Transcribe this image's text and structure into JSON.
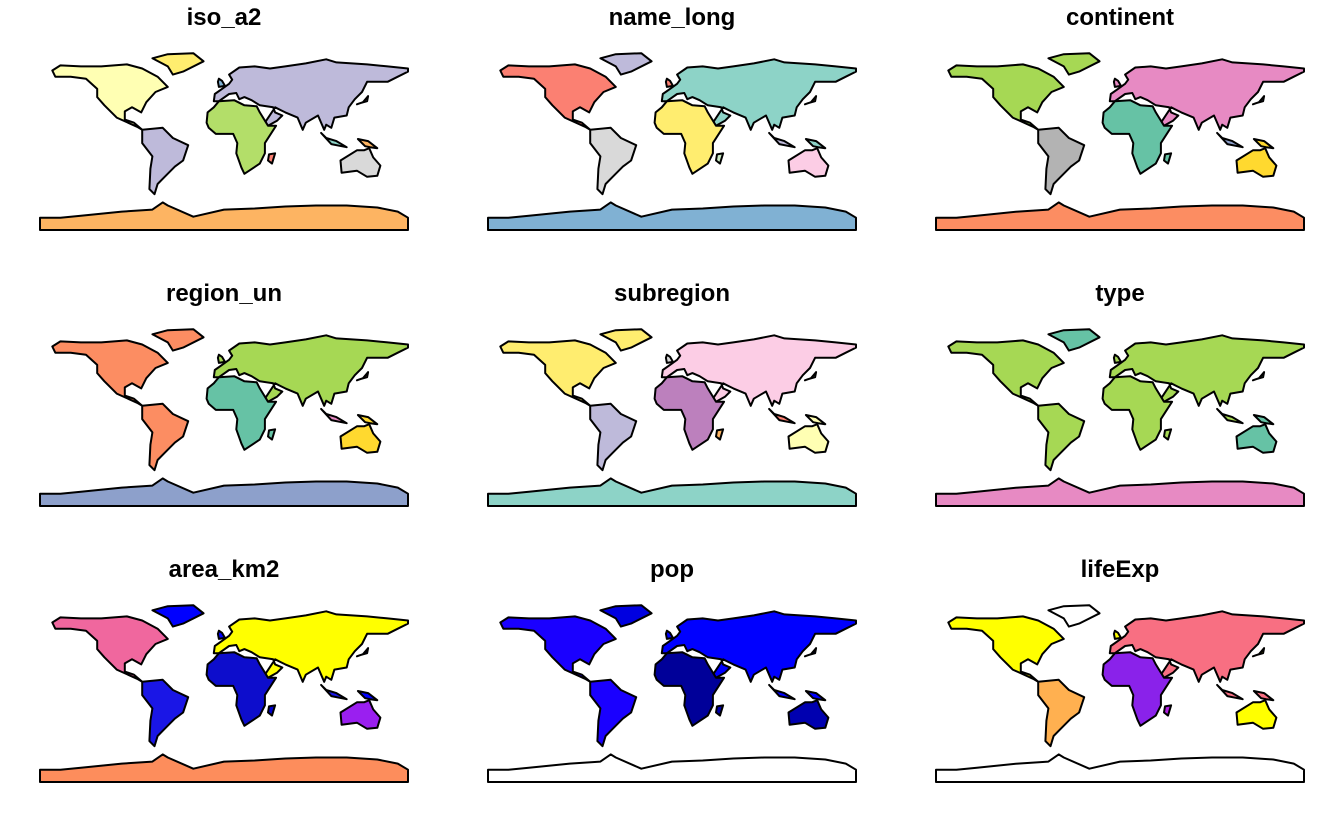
{
  "panels": [
    {
      "title": "iso_a2"
    },
    {
      "title": "name_long"
    },
    {
      "title": "continent"
    },
    {
      "title": "region_un"
    },
    {
      "title": "subregion"
    },
    {
      "title": "type"
    },
    {
      "title": "area_km2"
    },
    {
      "title": "pop"
    },
    {
      "title": "lifeExp"
    }
  ]
}
